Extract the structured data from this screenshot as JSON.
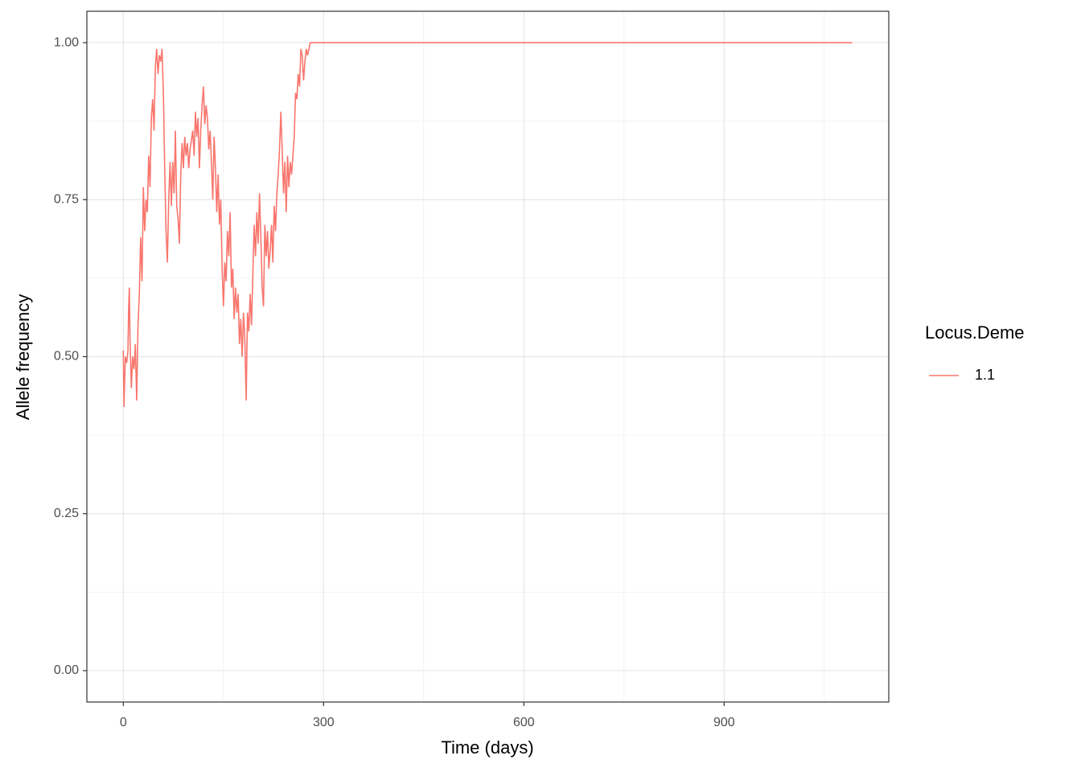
{
  "chart_data": {
    "type": "line",
    "x_label": "Time (days)",
    "y_label": "Allele frequency",
    "legend_title": "Locus.Deme",
    "legend_position": "right",
    "grid": true,
    "xlim": [
      -54.6,
      1146.6
    ],
    "xticks": [
      0,
      300,
      600,
      900
    ],
    "ylim": [
      -0.05,
      1.05
    ],
    "yticks": [
      {
        "value": 0,
        "label": "0.00"
      },
      0.25,
      {
        "value": 0.5,
        "label": "0.50"
      },
      0.75,
      {
        "value": 1,
        "label": "1.00"
      }
    ],
    "x": [
      0,
      1,
      3,
      5,
      7,
      8,
      9,
      10,
      12,
      14,
      16,
      18,
      20,
      22,
      24,
      26,
      28,
      30,
      32,
      34,
      36,
      38,
      40,
      42,
      44,
      46,
      48,
      50,
      52,
      54,
      56,
      58,
      60,
      62,
      64,
      66,
      68,
      70,
      72,
      74,
      76,
      78,
      80,
      82,
      84,
      86,
      88,
      90,
      92,
      94,
      96,
      98,
      100,
      104,
      106,
      108,
      110,
      112,
      114,
      116,
      118,
      120,
      122,
      124,
      126,
      128,
      130,
      132,
      134,
      136,
      138,
      140,
      142,
      144,
      146,
      148,
      150,
      152,
      154,
      156,
      158,
      160,
      162,
      164,
      166,
      168,
      170,
      172,
      174,
      176,
      178,
      180,
      182,
      184,
      186,
      188,
      190,
      192,
      194,
      196,
      198,
      200,
      202,
      204,
      206,
      208,
      210,
      212,
      214,
      216,
      218,
      220,
      222,
      224,
      226,
      228,
      230,
      232,
      234,
      236,
      238,
      240,
      242,
      244,
      246,
      248,
      250,
      252,
      254,
      256,
      258,
      260,
      262,
      264,
      266,
      268,
      270,
      272,
      274,
      276,
      280,
      1092
    ],
    "series": [
      {
        "name": "1.1",
        "color": "#F8766D",
        "values": [
          0.51,
          0.42,
          0.5,
          0.49,
          0.51,
          0.58,
          0.61,
          0.53,
          0.45,
          0.5,
          0.48,
          0.52,
          0.43,
          0.55,
          0.6,
          0.69,
          0.62,
          0.77,
          0.7,
          0.75,
          0.73,
          0.82,
          0.77,
          0.88,
          0.91,
          0.86,
          0.96,
          0.99,
          0.95,
          0.98,
          0.97,
          0.99,
          0.92,
          0.8,
          0.7,
          0.65,
          0.75,
          0.81,
          0.74,
          0.81,
          0.76,
          0.86,
          0.74,
          0.72,
          0.68,
          0.79,
          0.84,
          0.8,
          0.85,
          0.82,
          0.84,
          0.8,
          0.83,
          0.86,
          0.82,
          0.89,
          0.85,
          0.88,
          0.8,
          0.86,
          0.9,
          0.93,
          0.87,
          0.9,
          0.88,
          0.83,
          0.86,
          0.81,
          0.75,
          0.85,
          0.8,
          0.73,
          0.79,
          0.71,
          0.75,
          0.64,
          0.58,
          0.65,
          0.62,
          0.7,
          0.66,
          0.73,
          0.61,
          0.64,
          0.56,
          0.61,
          0.57,
          0.6,
          0.52,
          0.56,
          0.5,
          0.57,
          0.53,
          0.43,
          0.57,
          0.54,
          0.6,
          0.55,
          0.63,
          0.71,
          0.66,
          0.73,
          0.68,
          0.76,
          0.69,
          0.61,
          0.58,
          0.71,
          0.66,
          0.7,
          0.64,
          0.67,
          0.71,
          0.65,
          0.74,
          0.7,
          0.76,
          0.79,
          0.83,
          0.89,
          0.83,
          0.76,
          0.81,
          0.73,
          0.82,
          0.77,
          0.81,
          0.79,
          0.82,
          0.85,
          0.92,
          0.91,
          0.95,
          0.93,
          0.99,
          0.98,
          0.94,
          0.97,
          0.99,
          0.98,
          1.0,
          1.0
        ]
      }
    ]
  }
}
